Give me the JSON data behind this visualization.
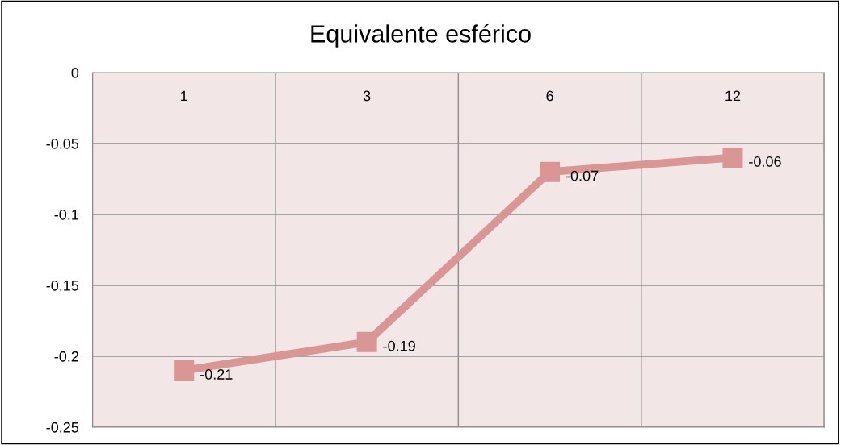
{
  "chart_data": {
    "type": "line",
    "title": "Equivalente esférico",
    "categories": [
      "1",
      "3",
      "6",
      "12"
    ],
    "series": [
      {
        "color": "#d99694",
        "values": [
          -0.21,
          -0.19,
          -0.07,
          -0.06
        ]
      }
    ],
    "ylim": [
      -0.25,
      0
    ],
    "yticks": [
      -0.25,
      -0.2,
      -0.15,
      -0.1,
      -0.05,
      0
    ],
    "grid": true,
    "marker": "square",
    "line_style": "solid",
    "data_labels": true,
    "legend": false
  }
}
